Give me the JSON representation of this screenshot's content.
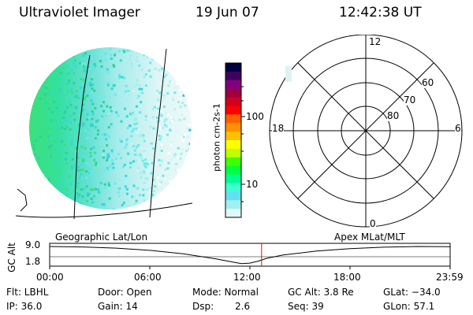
{
  "header": {
    "title": "Ultraviolet Imager",
    "date": "19 Jun 07",
    "time": "12:42:38 UT"
  },
  "colorbar": {
    "label": "photon cm-2s-1",
    "ticks": [
      "100",
      "10"
    ],
    "colors": [
      "#000040",
      "#400060",
      "#800080",
      "#a00040",
      "#d00020",
      "#ff0000",
      "#ff6000",
      "#ff9000",
      "#ffc000",
      "#ffff00",
      "#c0ff00",
      "#40ff00",
      "#00ff40",
      "#00ff90",
      "#40ffd0",
      "#60e0f0",
      "#a0f0f0",
      "#e0f8f8"
    ]
  },
  "polar": {
    "mlt_labels": [
      "12",
      "18",
      "6",
      "0"
    ],
    "lat_labels": [
      "60",
      "70",
      "80"
    ]
  },
  "timeline": {
    "left_label": "Geographic Lat/Lon",
    "right_label": "Apex MLat/MLT",
    "axis_title": "GC Alt",
    "y_ticks": [
      "9.0",
      "1.8"
    ],
    "x_ticks": [
      "00:00",
      "06:00",
      "12:00",
      "18:00",
      "23:59"
    ]
  },
  "info": {
    "flt": "Flt: LBHL",
    "door": "Door: Open",
    "mode": "Mode: Normal",
    "gc_alt": "GC Alt: 3.8 Re",
    "glat": "GLat: −34.0",
    "ip": "IP: 36.0",
    "gain": "Gain: 14",
    "dsp_label": "Dsp:",
    "dsp_value": "2.6",
    "seq": "Seq: 39",
    "glon": "GLon: 57.1"
  },
  "chart_data": {
    "type": "line",
    "title": "GC Alt",
    "x_range": [
      "00:00",
      "23:59"
    ],
    "y_ticks": [
      1.8,
      9.0
    ],
    "x": [
      0,
      2,
      4,
      6,
      8,
      10,
      11,
      11.5,
      12,
      12.5,
      13,
      14,
      16,
      18,
      20,
      22,
      23.98
    ],
    "y": [
      9.0,
      8.8,
      8.3,
      7.4,
      6.0,
      3.8,
      2.5,
      1.9,
      2.1,
      2.9,
      4.1,
      5.5,
      7.1,
      8.1,
      8.7,
      9.0,
      8.9
    ],
    "current_time": "12:42",
    "colors": {
      "line": "#000000",
      "marker": "#ff0000"
    }
  }
}
